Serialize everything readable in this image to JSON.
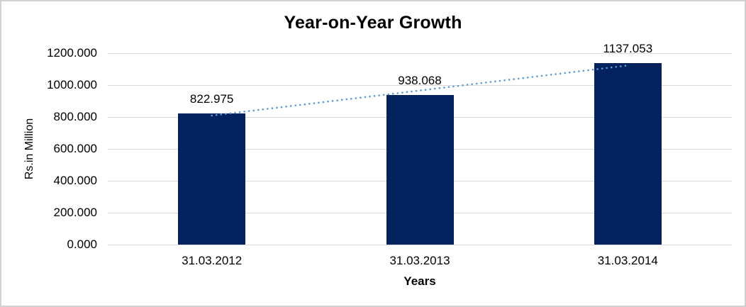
{
  "chart_data": {
    "type": "bar",
    "title": "Year-on-Year Growth",
    "xlabel": "Years",
    "ylabel": "Rs.in Million",
    "categories": [
      "31.03.2012",
      "31.03.2013",
      "31.03.2014"
    ],
    "values": [
      822.975,
      938.068,
      1137.053
    ],
    "data_labels": [
      "822.975",
      "938.068",
      "1137.053"
    ],
    "ytick_labels": [
      "0.000",
      "200.000",
      "400.000",
      "600.000",
      "800.000",
      "1000.000",
      "1200.000"
    ],
    "ytick_values": [
      0,
      200,
      400,
      600,
      800,
      1000,
      1200
    ],
    "ylim": [
      0,
      1200
    ],
    "grid": true,
    "legend": false,
    "trendline": true,
    "colors": {
      "bar": "#04225e",
      "trendline": "#5b9bd5",
      "gridline": "#d9d9d9",
      "axis_line": "#d9d9d9",
      "text": "#000000",
      "border": "#d1d1d1",
      "background": "#ffffff"
    }
  }
}
